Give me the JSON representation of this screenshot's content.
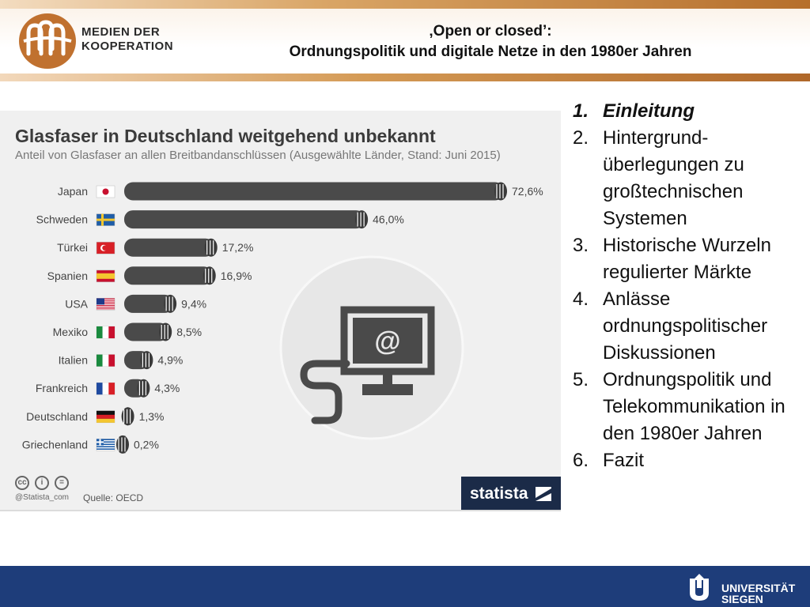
{
  "header": {
    "logo_line1": "MEDIEN DER",
    "logo_line2": "KOOPERATION",
    "title_line1": "‚Open or closed’:",
    "title_line2": "Ordnungspolitik und digitale Netze in den 1980er Jahren"
  },
  "infographic": {
    "handle": "@Statista_com",
    "source": "Quelle: OECD",
    "brand": "statista",
    "bar_color": "#4a4a4a",
    "background": "#f0f0f0"
  },
  "chart_data": {
    "type": "bar",
    "orientation": "horizontal",
    "title": "Glasfaser in Deutschland weitgehend unbekannt",
    "subtitle": "Anteil von Glasfaser an allen Breitbandanschlüssen (Ausgewählte Länder, Stand: Juni 2015)",
    "categories": [
      "Japan",
      "Schweden",
      "Türkei",
      "Spanien",
      "USA",
      "Mexiko",
      "Italien",
      "Frankreich",
      "Deutschland",
      "Griechenland"
    ],
    "values": [
      72.6,
      46.0,
      17.2,
      16.9,
      9.4,
      8.5,
      4.9,
      4.3,
      1.3,
      0.2
    ],
    "value_labels": [
      "72,6%",
      "46,0%",
      "17,2%",
      "16,9%",
      "9,4%",
      "8,5%",
      "4,9%",
      "4,3%",
      "1,3%",
      "0,2%"
    ],
    "xlim": [
      0,
      72.6
    ],
    "grid": false,
    "legend": "none"
  },
  "agenda": {
    "items": [
      {
        "num": "1.",
        "text": "Einleitung"
      },
      {
        "num": "2.",
        "text": "Hintergrund-überlegungen zu großtechnischen Systemen"
      },
      {
        "num": "3.",
        "text": "Historische Wurzeln regulierter Märkte"
      },
      {
        "num": "4.",
        "text": "Anlässe ordnungspolitischer Diskussionen"
      },
      {
        "num": "5.",
        "text": "Ordnungspolitik und Telekommunikation in den 1980er Jahren"
      },
      {
        "num": "6.",
        "text": "Fazit"
      }
    ]
  },
  "footer": {
    "uni_line1": "UNIVERSITÄT",
    "uni_line2": "SIEGEN"
  }
}
